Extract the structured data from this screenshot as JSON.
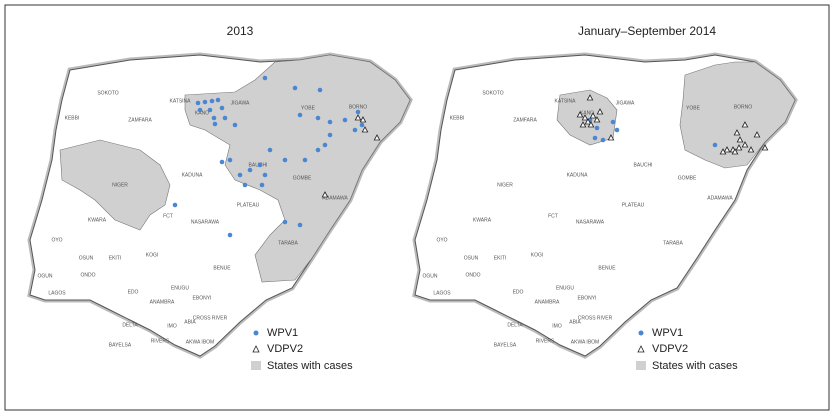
{
  "panels": [
    {
      "title": "2013",
      "states": [
        "SOKOTO",
        "KEBBI",
        "ZAMFARA",
        "KATSINA",
        "KANO",
        "JIGAWA",
        "YOBE",
        "BORNO",
        "KADUNA",
        "NIGER",
        "BAUCHI",
        "GOMBE",
        "ADAMAWA",
        "FCT",
        "NASARAWA",
        "PLATEAU",
        "KWARA",
        "OYO",
        "OSUN",
        "EKITI",
        "KOGI",
        "BENUE",
        "TARABA",
        "OGUN",
        "ONDO",
        "EDO",
        "LAGOS",
        "ENUGU",
        "EBONYI",
        "ANAMBRA",
        "IMO",
        "ABIA",
        "DELTA",
        "CROSS RIVER",
        "RIVERS",
        "BAYELSA",
        "AKWA IBOM"
      ],
      "legend": [
        "WPV1",
        "VDPV2",
        "States with cases"
      ]
    },
    {
      "title": "January–September 2014",
      "states": [
        "SOKOTO",
        "KEBBI",
        "ZAMFARA",
        "KATSINA",
        "KANO",
        "JIGAWA",
        "YOBE",
        "BORNO",
        "KADUNA",
        "NIGER",
        "BAUCHI",
        "GOMBE",
        "ADAMAWA",
        "FCT",
        "NASARAWA",
        "PLATEAU",
        "KWARA",
        "OYO",
        "OSUN",
        "EKITI",
        "KOGI",
        "BENUE",
        "TARABA",
        "OGUN",
        "ONDO",
        "EDO",
        "LAGOS",
        "ENUGU",
        "EBONYI",
        "ANAMBRA",
        "IMO",
        "ABIA",
        "DELTA",
        "CROSS RIVER",
        "RIVERS",
        "BAYELSA",
        "AKWA IBOM"
      ],
      "legend": [
        "WPV1",
        "VDPV2",
        "States with cases"
      ]
    }
  ]
}
